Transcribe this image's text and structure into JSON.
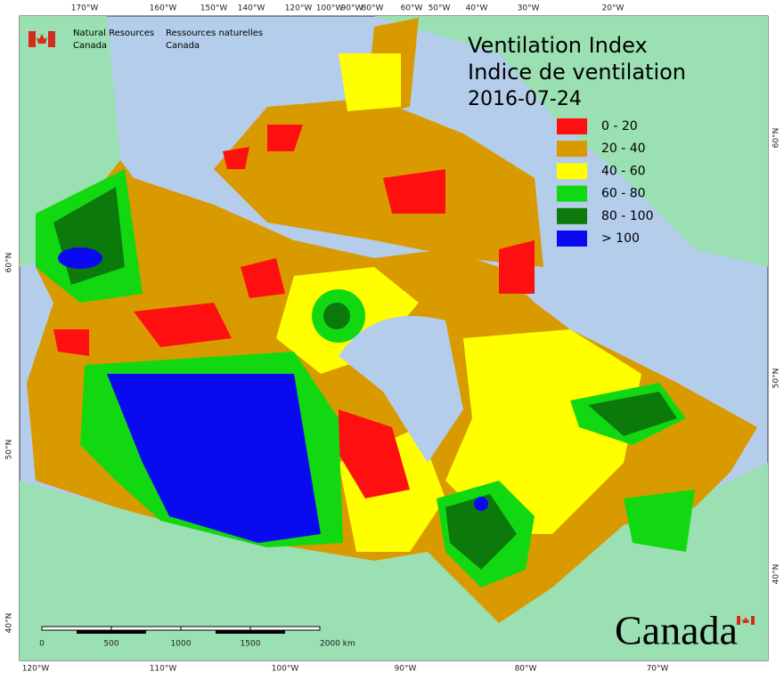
{
  "header": {
    "agency_en": [
      "Natural Resources",
      "Canada"
    ],
    "agency_fr": [
      "Ressources naturelles",
      "Canada"
    ]
  },
  "title": [
    "Ventilation Index",
    "Indice de ventilation"
  ],
  "date": "2016-07-24",
  "legend": [
    {
      "label": "0 - 20",
      "color": "#ff1010"
    },
    {
      "label": "20 - 40",
      "color": "#d99a00"
    },
    {
      "label": "40 - 60",
      "color": "#ffff00"
    },
    {
      "label": "60 - 80",
      "color": "#12d812"
    },
    {
      "label": "80 - 100",
      "color": "#0b7a0b"
    },
    {
      "label": "> 100",
      "color": "#0a0af0"
    }
  ],
  "graticule": {
    "top": [
      "170°W",
      "160°W",
      "150°W",
      "140°W",
      "120°W",
      "100°W",
      "90°W",
      "80°W",
      "60°W",
      "50°W",
      "40°W",
      "30°W",
      "20°W"
    ],
    "bottom": [
      "120°W",
      "110°W",
      "100°W",
      "90°W",
      "80°W",
      "70°W"
    ],
    "left": [
      "60°N",
      "50°N",
      "40°N"
    ],
    "right": [
      "60°N",
      "50°N",
      "40°N"
    ]
  },
  "scale_bar": [
    "0",
    "500",
    "1000",
    "1500",
    "2000 km"
  ],
  "wordmark": "Canada"
}
